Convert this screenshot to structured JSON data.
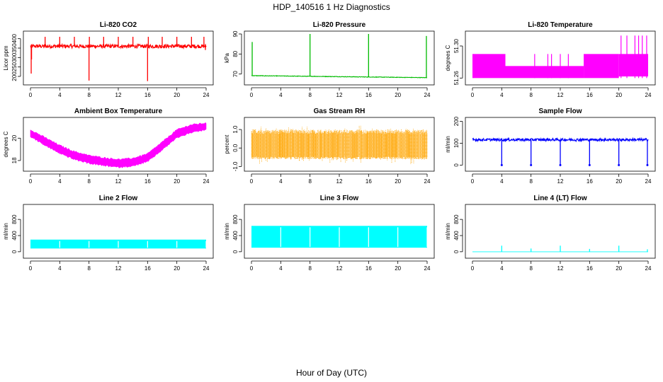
{
  "figure": {
    "title": "HDP_140516  1 Hz Diagnostics",
    "xlabel": "Hour of Day (UTC)"
  },
  "chart_data": [
    {
      "id": "co2",
      "type": "line",
      "title": "Li-820 CO2",
      "ylabel": "Licor ppm",
      "color": "#ff0000",
      "xlim": [
        0,
        24
      ],
      "xticks": [
        "0",
        "4",
        "8",
        "12",
        "16",
        "20",
        "24"
      ],
      "ylim": [
        170,
        425
      ],
      "yticks": [
        {
          "v": 200,
          "label": "200"
        },
        {
          "v": 250,
          "label": "250"
        },
        {
          "v": 300,
          "label": "300"
        },
        {
          "v": 350,
          "label": "350"
        },
        {
          "v": 400,
          "label": "400"
        }
      ],
      "baseline": [
        350,
        370
      ],
      "spikes": [
        {
          "x": 0.1,
          "y": 215
        },
        {
          "x": 0.15,
          "y": 290
        },
        {
          "x": 2.0,
          "y": 410
        },
        {
          "x": 4.0,
          "y": 410
        },
        {
          "x": 6.0,
          "y": 410
        },
        {
          "x": 8.0,
          "y": 178
        },
        {
          "x": 8.05,
          "y": 410
        },
        {
          "x": 10.0,
          "y": 410
        },
        {
          "x": 12.0,
          "y": 410
        },
        {
          "x": 14.0,
          "y": 410
        },
        {
          "x": 16.0,
          "y": 175
        },
        {
          "x": 16.1,
          "y": 410
        },
        {
          "x": 18.0,
          "y": 410
        },
        {
          "x": 20.0,
          "y": 410
        },
        {
          "x": 22.0,
          "y": 410
        },
        {
          "x": 23.7,
          "y": 410
        },
        {
          "x": 23.9,
          "y": 340
        }
      ]
    },
    {
      "id": "pressure",
      "type": "line",
      "title": "Li-820 Pressure",
      "ylabel": "kPa",
      "color": "#00bb00",
      "xlim": [
        0,
        24
      ],
      "xticks": [
        "0",
        "4",
        "8",
        "12",
        "16",
        "20",
        "24"
      ],
      "ylim": [
        66,
        90
      ],
      "yticks": [
        {
          "v": 70,
          "label": "70"
        },
        {
          "v": 80,
          "label": "80"
        },
        {
          "v": 90,
          "label": "90"
        }
      ],
      "trend": [
        [
          0,
          69.2
        ],
        [
          24,
          68.2
        ]
      ],
      "spikes": [
        {
          "x": 0.1,
          "y": 86
        },
        {
          "x": 8.0,
          "y": 90
        },
        {
          "x": 16.0,
          "y": 90
        },
        {
          "x": 23.9,
          "y": 89
        }
      ]
    },
    {
      "id": "licor_temp",
      "type": "line",
      "title": "Li-820 Temperature",
      "ylabel": "degrees C",
      "color": "#ff00ff",
      "xlim": [
        0,
        24
      ],
      "xticks": [
        "0",
        "4",
        "8",
        "12",
        "16",
        "20",
        "24"
      ],
      "ylim": [
        51.255,
        51.315
      ],
      "yticks": [
        {
          "v": 51.26,
          "label": "51.26"
        },
        {
          "v": 51.3,
          "label": "51.30"
        }
      ],
      "levels": [
        51.26,
        51.29,
        51.3
      ],
      "segments": [
        {
          "x0": 0,
          "x1": 4.5,
          "lo": 51.26,
          "hi": 51.29
        },
        {
          "x0": 4.5,
          "x1": 15.2,
          "lo": 51.26,
          "hi": 51.275
        },
        {
          "x0": 15.2,
          "x1": 20,
          "lo": 51.26,
          "hi": 51.29
        },
        {
          "x0": 20,
          "x1": 24,
          "lo": 51.262,
          "hi": 51.29
        }
      ],
      "spikes": [
        {
          "x": 8.5,
          "y": 51.29
        },
        {
          "x": 10.3,
          "y": 51.29
        },
        {
          "x": 10.8,
          "y": 51.29
        },
        {
          "x": 12.0,
          "y": 51.29
        },
        {
          "x": 13.1,
          "y": 51.29
        },
        {
          "x": 20.3,
          "y": 51.313
        },
        {
          "x": 21.1,
          "y": 51.313
        },
        {
          "x": 22.2,
          "y": 51.313
        },
        {
          "x": 22.7,
          "y": 51.313
        },
        {
          "x": 23.2,
          "y": 51.313
        },
        {
          "x": 23.8,
          "y": 51.313
        }
      ]
    },
    {
      "id": "box_temp",
      "type": "line",
      "title": "Ambient Box Temperature",
      "ylabel": "degrees C",
      "color": "#ff00ff",
      "xlim": [
        0,
        24
      ],
      "xticks": [
        "0",
        "4",
        "8",
        "12",
        "16",
        "20",
        "24"
      ],
      "ylim": [
        17.3,
        21.6
      ],
      "yticks": [
        {
          "v": 18,
          "label": "18"
        },
        {
          "v": 20,
          "label": "20"
        }
      ],
      "band": [
        [
          0,
          20.45,
          0.3
        ],
        [
          2,
          19.7,
          0.35
        ],
        [
          4,
          19.0,
          0.35
        ],
        [
          6,
          18.45,
          0.35
        ],
        [
          8,
          18.1,
          0.35
        ],
        [
          10,
          17.9,
          0.35
        ],
        [
          12,
          17.75,
          0.35
        ],
        [
          14,
          17.85,
          0.35
        ],
        [
          16,
          18.25,
          0.35
        ],
        [
          18,
          19.3,
          0.35
        ],
        [
          20,
          20.4,
          0.35
        ],
        [
          22,
          20.85,
          0.35
        ],
        [
          24,
          21.05,
          0.3
        ]
      ]
    },
    {
      "id": "rh",
      "type": "line",
      "title": "Gas Stream RH",
      "ylabel": "percent",
      "color": "#ffa500",
      "xlim": [
        0,
        24
      ],
      "xticks": [
        "0",
        "4",
        "8",
        "12",
        "16",
        "20",
        "24"
      ],
      "ylim": [
        -1.1,
        1.5
      ],
      "yticks": [
        {
          "v": -1.0,
          "label": "-1.0"
        },
        {
          "v": 0.0,
          "label": "0.0"
        },
        {
          "v": 1.0,
          "label": "1.0"
        }
      ],
      "noise": [
        -0.6,
        1.0
      ]
    },
    {
      "id": "sample_flow",
      "type": "line",
      "title": "Sample Flow",
      "ylabel": "ml/min",
      "color": "#0000ff",
      "xlim": [
        0,
        24
      ],
      "xticks": [
        "0",
        "4",
        "8",
        "12",
        "16",
        "20",
        "24"
      ],
      "ylim": [
        -15,
        205
      ],
      "yticks": [
        {
          "v": 0,
          "label": "0"
        },
        {
          "v": 100,
          "label": "100"
        },
        {
          "v": 200,
          "label": "200"
        }
      ],
      "baseline": [
        110,
        122
      ],
      "dips": [
        {
          "x": 4.0,
          "y": 0
        },
        {
          "x": 8.0,
          "y": 0
        },
        {
          "x": 12.0,
          "y": 0
        },
        {
          "x": 16.0,
          "y": 0
        },
        {
          "x": 20.0,
          "y": 0
        },
        {
          "x": 23.9,
          "y": 0
        }
      ]
    },
    {
      "id": "line2",
      "type": "area",
      "title": "Line 2 Flow",
      "ylabel": "ml/min",
      "color": "#00ffff",
      "xlim": [
        0,
        24
      ],
      "xticks": [
        "0",
        "4",
        "8",
        "12",
        "16",
        "20",
        "24"
      ],
      "ylim": [
        -90,
        1100
      ],
      "yticks": [
        {
          "v": 0,
          "label": "0"
        },
        {
          "v": 400,
          "label": "400"
        },
        {
          "v": 800,
          "label": "800"
        }
      ],
      "band": [
        80,
        300
      ],
      "gaps": [
        4.0,
        8.0,
        12.0,
        16.0,
        20.0,
        24.0
      ]
    },
    {
      "id": "line3",
      "type": "area",
      "title": "Line 3 Flow",
      "ylabel": "ml/min",
      "color": "#00ffff",
      "xlim": [
        0,
        24
      ],
      "xticks": [
        "0",
        "4",
        "8",
        "12",
        "16",
        "20",
        "24"
      ],
      "ylim": [
        -90,
        1100
      ],
      "yticks": [
        {
          "v": 0,
          "label": "0"
        },
        {
          "v": 400,
          "label": "400"
        },
        {
          "v": 800,
          "label": "800"
        }
      ],
      "band": [
        100,
        640
      ],
      "gaps": [
        4.0,
        8.0,
        12.0,
        16.0,
        20.0,
        24.0
      ]
    },
    {
      "id": "line4",
      "type": "line",
      "title": "Line 4 (LT) Flow",
      "ylabel": "ml/min",
      "color": "#00ffff",
      "xlim": [
        0,
        24
      ],
      "xticks": [
        "0",
        "4",
        "8",
        "12",
        "16",
        "20",
        "24"
      ],
      "ylim": [
        -90,
        1100
      ],
      "yticks": [
        {
          "v": 0,
          "label": "0"
        },
        {
          "v": 400,
          "label": "400"
        },
        {
          "v": 800,
          "label": "800"
        }
      ],
      "baseline": [
        0,
        0
      ],
      "spikes": [
        {
          "x": 4.0,
          "y": 150
        },
        {
          "x": 8.0,
          "y": 80
        },
        {
          "x": 12.0,
          "y": 150
        },
        {
          "x": 16.0,
          "y": 70
        },
        {
          "x": 20.0,
          "y": 150
        },
        {
          "x": 23.9,
          "y": 60
        }
      ]
    }
  ]
}
